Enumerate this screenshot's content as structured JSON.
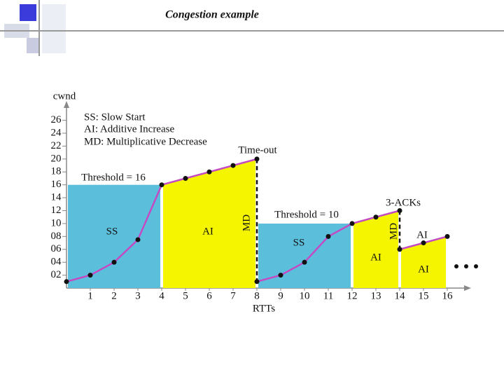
{
  "title": "Congestion example",
  "chart_data": {
    "type": "line",
    "x_label": "RTTs",
    "y_label": "cwnd",
    "x": [
      0,
      1,
      2,
      3,
      4,
      5,
      6,
      7,
      8,
      8,
      9,
      10,
      11,
      12,
      13,
      14,
      14,
      15,
      16
    ],
    "values": [
      1,
      2,
      4,
      7.5,
      16,
      17,
      18,
      19,
      20,
      1,
      2,
      4,
      8,
      10,
      11,
      12,
      6,
      7,
      8
    ],
    "color": "#c44ac4",
    "xlim": [
      0,
      17
    ],
    "ylim": [
      0,
      29
    ],
    "xticks": [
      1,
      2,
      3,
      4,
      5,
      6,
      7,
      8,
      9,
      10,
      11,
      12,
      13,
      14,
      15,
      16
    ],
    "yticks": [
      {
        "value": 2,
        "label": "02"
      },
      {
        "value": 4,
        "label": "04"
      },
      {
        "value": 6,
        "label": "06"
      },
      {
        "value": 8,
        "label": "08"
      },
      10,
      12,
      14,
      16,
      18,
      20,
      22,
      24,
      26
    ],
    "regions": [
      {
        "label": "SS",
        "x": [
          0,
          4
        ],
        "threshold": 16,
        "color": "#5bbfdc"
      },
      {
        "label": "AI",
        "x": [
          4,
          8
        ],
        "color": "#f5f500"
      },
      {
        "label": "SS",
        "x": [
          8,
          12
        ],
        "threshold": 10,
        "color": "#5bbfdc"
      },
      {
        "label": "AI",
        "x": [
          12,
          14
        ],
        "color": "#f5f500"
      },
      {
        "label": "AI",
        "x": [
          14,
          16
        ],
        "color": "#f5f500"
      }
    ],
    "annotations": [
      "SS: Slow Start",
      "AI: Additive Increase",
      "MD: Multiplicative Decrease",
      "Time-out",
      "Threshold = 16",
      "Threshold = 10",
      "3-ACKs",
      "MD",
      "MD",
      "AI"
    ]
  }
}
